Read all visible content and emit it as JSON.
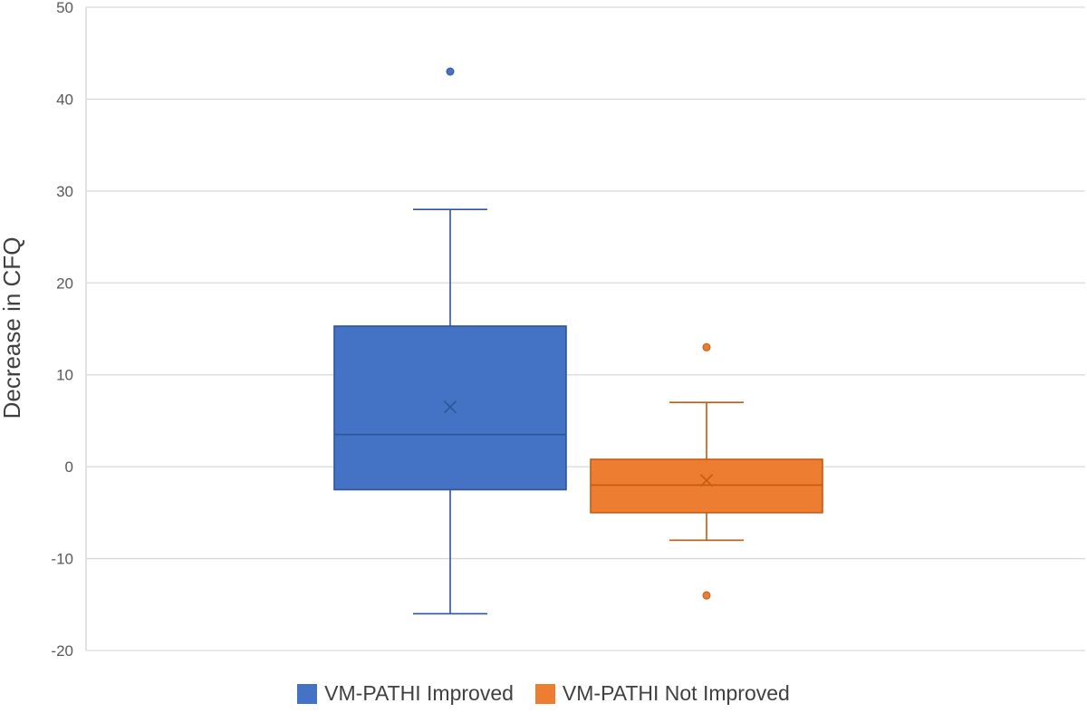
{
  "chart_data": {
    "type": "box",
    "title": "",
    "xlabel": "",
    "ylabel": "Decrease in CFQ",
    "ylim": [
      -20,
      50
    ],
    "yticks": [
      50,
      40,
      30,
      20,
      10,
      0,
      -10,
      -20
    ],
    "grid": true,
    "legend_position": "bottom",
    "series": [
      {
        "name": "VM-PATHI Improved",
        "color": "#4472C4",
        "whisker_low": -16,
        "q1": -2.5,
        "median": 3.5,
        "q3": 15.3,
        "whisker_high": 28,
        "mean": 6.5,
        "outliers": [
          43
        ]
      },
      {
        "name": "VM-PATHI Not Improved",
        "color": "#ED7D31",
        "whisker_low": -8,
        "q1": -5,
        "median": -2,
        "q3": 0.8,
        "whisker_high": 7,
        "mean": -1.5,
        "outliers": [
          13,
          -14
        ]
      }
    ]
  }
}
